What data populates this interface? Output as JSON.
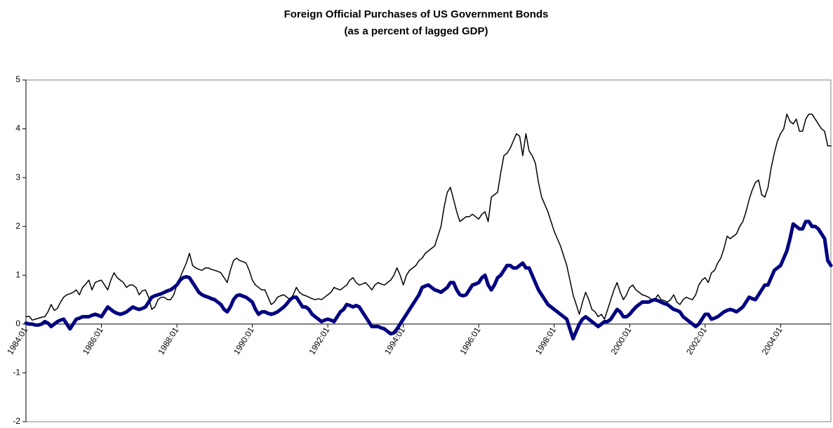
{
  "chart_data": {
    "type": "line",
    "title": "Foreign Official Purchases of US Government Bonds",
    "subtitle": "(as a percent of lagged GDP)",
    "categories": [
      "1984:01",
      null,
      null,
      null,
      null,
      null,
      null,
      null,
      null,
      null,
      null,
      null,
      null,
      null,
      null,
      null,
      null,
      null,
      null,
      null,
      null,
      null,
      null,
      null,
      "1986:01",
      null,
      null,
      null,
      null,
      null,
      null,
      null,
      null,
      null,
      null,
      null,
      null,
      null,
      null,
      null,
      null,
      null,
      null,
      null,
      null,
      null,
      null,
      null,
      "1988:01",
      null,
      null,
      null,
      null,
      null,
      null,
      null,
      null,
      null,
      null,
      null,
      null,
      null,
      null,
      null,
      null,
      null,
      null,
      null,
      null,
      null,
      null,
      null,
      "1990:01",
      null,
      null,
      null,
      null,
      null,
      null,
      null,
      null,
      null,
      null,
      null,
      null,
      null,
      null,
      null,
      null,
      null,
      null,
      null,
      null,
      null,
      null,
      null,
      "1992:01",
      null,
      null,
      null,
      null,
      null,
      null,
      null,
      null,
      null,
      null,
      null,
      null,
      null,
      null,
      null,
      null,
      null,
      null,
      null,
      null,
      null,
      null,
      null,
      "1994:01",
      null,
      null,
      null,
      null,
      null,
      null,
      null,
      null,
      null,
      null,
      null,
      null,
      null,
      null,
      null,
      null,
      null,
      null,
      null,
      null,
      null,
      null,
      null,
      "1996:01",
      null,
      null,
      null,
      null,
      null,
      null,
      null,
      null,
      null,
      null,
      null,
      null,
      null,
      null,
      null,
      null,
      null,
      null,
      null,
      null,
      null,
      null,
      null,
      "1998:01",
      null,
      null,
      null,
      null,
      null,
      null,
      null,
      null,
      null,
      null,
      null,
      null,
      null,
      null,
      null,
      null,
      null,
      null,
      null,
      null,
      null,
      null,
      null,
      "2000:01",
      null,
      null,
      null,
      null,
      null,
      null,
      null,
      null,
      null,
      null,
      null,
      null,
      null,
      null,
      null,
      null,
      null,
      null,
      null,
      null,
      null,
      null,
      null,
      "2002:01",
      null,
      null,
      null,
      null,
      null,
      null,
      null,
      null,
      null,
      null,
      null,
      null,
      null,
      null,
      null,
      null,
      null,
      null,
      null,
      null,
      null,
      null,
      null,
      "2004:01",
      null,
      null,
      null,
      null,
      null,
      null,
      null,
      null,
      null,
      null,
      null,
      null,
      null,
      null,
      null,
      null
    ],
    "series": [
      {
        "color": "#000000",
        "width": 1.5,
        "values": [
          0.15,
          0.16,
          0.08,
          0.1,
          0.12,
          0.14,
          0.15,
          0.25,
          0.4,
          0.28,
          0.32,
          0.45,
          0.55,
          0.6,
          0.62,
          0.65,
          0.7,
          0.6,
          0.75,
          0.82,
          0.9,
          0.7,
          0.85,
          0.88,
          0.9,
          0.8,
          0.7,
          0.9,
          1.05,
          0.95,
          0.9,
          0.85,
          0.75,
          0.8,
          0.8,
          0.75,
          0.6,
          0.68,
          0.7,
          0.55,
          0.3,
          0.35,
          0.5,
          0.55,
          0.55,
          0.5,
          0.5,
          0.6,
          0.8,
          0.95,
          1.1,
          1.25,
          1.45,
          1.2,
          1.15,
          1.12,
          1.1,
          1.15,
          1.15,
          1.12,
          1.1,
          1.08,
          1.05,
          0.95,
          0.85,
          1.1,
          1.3,
          1.35,
          1.3,
          1.28,
          1.25,
          1.1,
          0.9,
          0.8,
          0.75,
          0.7,
          0.7,
          0.55,
          0.4,
          0.45,
          0.55,
          0.58,
          0.6,
          0.55,
          0.5,
          0.6,
          0.75,
          0.65,
          0.6,
          0.58,
          0.55,
          0.52,
          0.5,
          0.52,
          0.5,
          0.55,
          0.6,
          0.65,
          0.75,
          0.72,
          0.7,
          0.75,
          0.8,
          0.9,
          0.95,
          0.85,
          0.8,
          0.82,
          0.85,
          0.78,
          0.7,
          0.8,
          0.85,
          0.82,
          0.8,
          0.85,
          0.9,
          1.0,
          1.15,
          1.0,
          0.8,
          1.0,
          1.1,
          1.15,
          1.2,
          1.3,
          1.35,
          1.45,
          1.5,
          1.55,
          1.6,
          1.8,
          2.0,
          2.4,
          2.7,
          2.8,
          2.55,
          2.3,
          2.1,
          2.15,
          2.2,
          2.2,
          2.25,
          2.2,
          2.15,
          2.25,
          2.3,
          2.1,
          2.6,
          2.65,
          2.7,
          3.1,
          3.45,
          3.5,
          3.6,
          3.75,
          3.9,
          3.85,
          3.45,
          3.9,
          3.55,
          3.45,
          3.3,
          2.9,
          2.6,
          2.45,
          2.3,
          2.1,
          1.9,
          1.75,
          1.6,
          1.4,
          1.2,
          0.9,
          0.6,
          0.4,
          0.2,
          0.45,
          0.65,
          0.5,
          0.3,
          0.25,
          0.15,
          0.2,
          0.1,
          0.3,
          0.5,
          0.7,
          0.85,
          0.65,
          0.5,
          0.6,
          0.75,
          0.8,
          0.7,
          0.65,
          0.6,
          0.58,
          0.55,
          0.5,
          0.5,
          0.6,
          0.5,
          0.48,
          0.45,
          0.5,
          0.6,
          0.45,
          0.4,
          0.5,
          0.55,
          0.52,
          0.5,
          0.6,
          0.8,
          0.9,
          0.95,
          0.85,
          1.05,
          1.1,
          1.25,
          1.35,
          1.55,
          1.8,
          1.75,
          1.8,
          1.85,
          2.0,
          2.1,
          2.3,
          2.55,
          2.75,
          2.9,
          2.95,
          2.65,
          2.6,
          2.8,
          3.2,
          3.5,
          3.75,
          3.9,
          4.0,
          4.3,
          4.15,
          4.1,
          4.2,
          3.95,
          3.95,
          4.2,
          4.3,
          4.3,
          4.2,
          4.1,
          4.0,
          3.95,
          3.65,
          3.65
        ]
      },
      {
        "color": "#000080",
        "width": 5,
        "values": [
          0.02,
          0.0,
          0.0,
          -0.02,
          -0.02,
          0.0,
          0.05,
          0.02,
          -0.05,
          0.0,
          0.05,
          0.08,
          0.1,
          0.0,
          -0.1,
          0.0,
          0.1,
          0.12,
          0.15,
          0.15,
          0.15,
          0.18,
          0.2,
          0.18,
          0.15,
          0.25,
          0.35,
          0.3,
          0.25,
          0.22,
          0.2,
          0.22,
          0.25,
          0.3,
          0.35,
          0.32,
          0.3,
          0.32,
          0.35,
          0.45,
          0.55,
          0.58,
          0.6,
          0.62,
          0.65,
          0.68,
          0.7,
          0.75,
          0.8,
          0.9,
          0.95,
          0.97,
          0.95,
          0.85,
          0.75,
          0.65,
          0.6,
          0.57,
          0.55,
          0.52,
          0.5,
          0.45,
          0.4,
          0.3,
          0.25,
          0.35,
          0.5,
          0.58,
          0.6,
          0.57,
          0.55,
          0.5,
          0.45,
          0.3,
          0.2,
          0.25,
          0.25,
          0.22,
          0.2,
          0.22,
          0.25,
          0.3,
          0.35,
          0.42,
          0.5,
          0.55,
          0.55,
          0.45,
          0.35,
          0.35,
          0.3,
          0.2,
          0.15,
          0.1,
          0.05,
          0.08,
          0.1,
          0.08,
          0.05,
          0.15,
          0.25,
          0.3,
          0.4,
          0.38,
          0.35,
          0.38,
          0.35,
          0.25,
          0.15,
          0.05,
          -0.05,
          -0.05,
          -0.05,
          -0.08,
          -0.1,
          -0.15,
          -0.2,
          -0.18,
          -0.1,
          0.0,
          0.1,
          0.2,
          0.3,
          0.4,
          0.5,
          0.6,
          0.75,
          0.78,
          0.8,
          0.75,
          0.7,
          0.68,
          0.65,
          0.7,
          0.75,
          0.85,
          0.85,
          0.7,
          0.6,
          0.58,
          0.6,
          0.7,
          0.8,
          0.82,
          0.85,
          0.95,
          1.0,
          0.8,
          0.7,
          0.8,
          0.95,
          1.0,
          1.1,
          1.2,
          1.2,
          1.15,
          1.15,
          1.2,
          1.25,
          1.15,
          1.15,
          1.0,
          0.85,
          0.7,
          0.6,
          0.5,
          0.4,
          0.35,
          0.3,
          0.25,
          0.2,
          0.15,
          0.1,
          -0.1,
          -0.3,
          -0.15,
          0.0,
          0.1,
          0.15,
          0.1,
          0.05,
          0.0,
          -0.05,
          0.0,
          0.05,
          0.05,
          0.1,
          0.2,
          0.3,
          0.25,
          0.15,
          0.15,
          0.2,
          0.28,
          0.35,
          0.4,
          0.45,
          0.45,
          0.45,
          0.48,
          0.5,
          0.48,
          0.45,
          0.42,
          0.4,
          0.35,
          0.3,
          0.28,
          0.25,
          0.15,
          0.1,
          0.05,
          0.0,
          -0.05,
          0.0,
          0.1,
          0.2,
          0.2,
          0.1,
          0.12,
          0.15,
          0.2,
          0.25,
          0.28,
          0.3,
          0.28,
          0.25,
          0.3,
          0.35,
          0.45,
          0.55,
          0.52,
          0.5,
          0.6,
          0.7,
          0.8,
          0.8,
          0.95,
          1.1,
          1.15,
          1.2,
          1.35,
          1.5,
          1.75,
          2.05,
          2.0,
          1.95,
          1.95,
          2.1,
          2.1,
          2.0,
          2.0,
          1.95,
          1.85,
          1.75,
          1.3,
          1.2
        ]
      }
    ],
    "ylim": [
      -2,
      5
    ],
    "yticks": [
      -2,
      -1,
      0,
      1,
      2,
      3,
      4,
      5
    ],
    "grid": false
  }
}
